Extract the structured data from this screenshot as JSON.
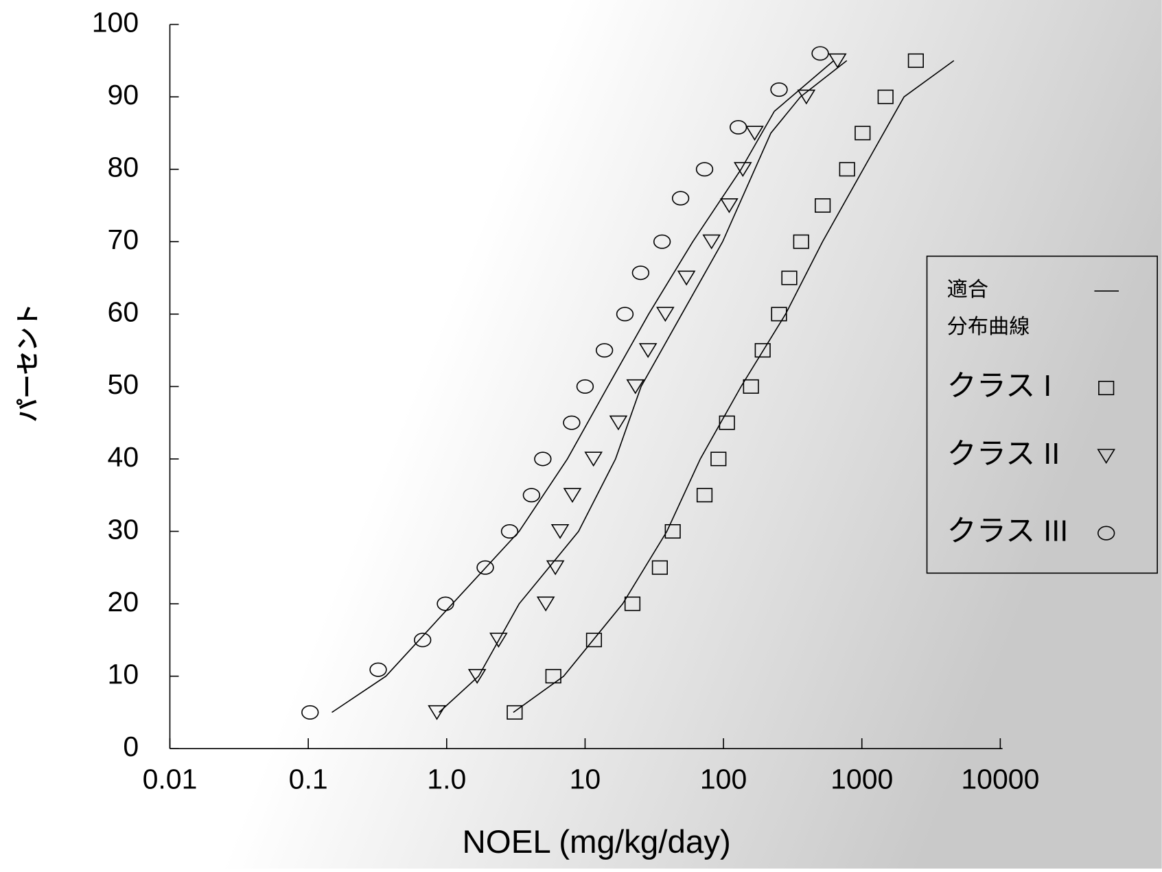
{
  "chart_data": {
    "type": "scatter",
    "x_label": "NOEL (mg/kg/day)",
    "y_label": "パーセント",
    "log_x": true,
    "xlim": [
      0.01,
      10000
    ],
    "xticks": [
      0.01,
      0.1,
      {
        "value": 1,
        "label": "1.0"
      },
      10,
      100,
      1000,
      10000
    ],
    "ylim": [
      0,
      100
    ],
    "yticks": [
      0,
      10,
      20,
      30,
      40,
      50,
      60,
      70,
      80,
      90,
      100
    ],
    "legend": "right",
    "series": [
      {
        "name": "クラス I",
        "marker": "square",
        "color": "#000000",
        "x": [
          3.1,
          5.9,
          11.6,
          22,
          34.7,
          43,
          73,
          92,
          106,
          158,
          192,
          252,
          299,
          364,
          521,
          782,
          1012,
          1483,
          2455
        ],
        "values": [
          5,
          10,
          15,
          20,
          25,
          30,
          35,
          40,
          45,
          50,
          55,
          60,
          65,
          70,
          75,
          80,
          85,
          90,
          95
        ]
      },
      {
        "name": "クラス II",
        "marker": "triangle",
        "color": "#000000",
        "x": [
          0.85,
          1.66,
          2.37,
          5.2,
          6.1,
          6.6,
          8.1,
          11.5,
          17.4,
          23.1,
          28.5,
          38,
          54,
          82,
          110,
          138,
          168,
          397,
          667
        ],
        "values": [
          5,
          10,
          15,
          20,
          25,
          30,
          35,
          40,
          45,
          50,
          55,
          60,
          65,
          70,
          75,
          80,
          85,
          90,
          95
        ]
      },
      {
        "name": "クラス III",
        "marker": "circle",
        "color": "#000000",
        "x": [
          0.103,
          0.32,
          0.67,
          0.98,
          1.9,
          2.85,
          4.1,
          4.95,
          8.0,
          10,
          13.8,
          19.4,
          25.2,
          36,
          49,
          73,
          128,
          252,
          500
        ],
        "values": [
          5,
          10.9,
          15,
          20,
          25,
          30,
          35,
          40,
          45,
          50,
          55,
          60,
          65.7,
          70,
          76,
          80,
          85.8,
          91,
          96
        ]
      }
    ],
    "fit": {
      "name": [
        "適合",
        "分布曲線"
      ],
      "color": "#000000",
      "lines": [
        {
          "x": [
            3.03,
            7,
            18.7,
            39,
            68,
            134,
            281,
            520,
            1022,
            2016,
            4620
          ],
          "values": [
            5,
            10,
            20,
            30,
            40,
            50,
            60,
            70,
            80,
            90,
            95
          ]
        },
        {
          "x": [
            0.88,
            1.7,
            3.34,
            8.97,
            16.6,
            25.4,
            50,
            98.6,
            220,
            360,
            778
          ],
          "values": [
            5,
            10,
            20,
            30,
            40,
            50,
            60,
            70,
            85,
            90,
            95
          ]
        },
        {
          "x": [
            0.148,
            0.364,
            1.1,
            3.34,
            7.45,
            14.6,
            28.8,
            60,
            134,
            233,
            626
          ],
          "values": [
            5,
            10,
            20,
            30,
            40,
            50,
            60,
            70,
            80,
            88,
            95
          ]
        }
      ]
    }
  }
}
